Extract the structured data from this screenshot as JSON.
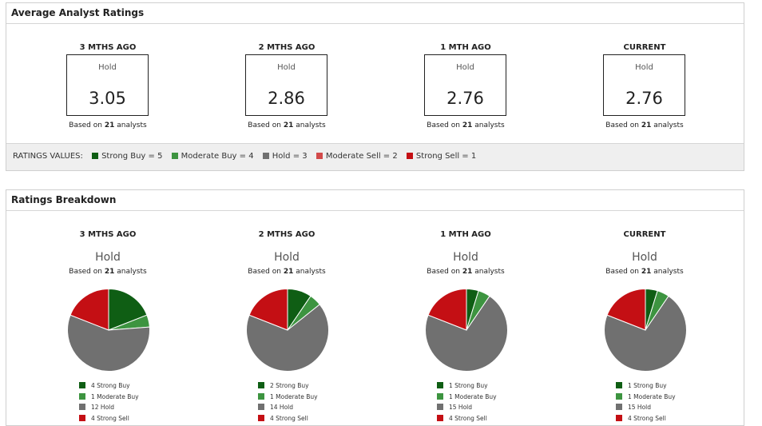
{
  "colors": {
    "strong_buy": "#0f5e14",
    "moderate_buy": "#3d9440",
    "hold": "#707070",
    "moderate_sell": "#d24a4a",
    "strong_sell": "#c40f14"
  },
  "avg_panel": {
    "title": "Average Analyst Ratings",
    "columns": [
      {
        "period": "3 MTHS AGO",
        "rating": "Hold",
        "score": "3.05",
        "based_prefix": "Based on",
        "analysts": "21",
        "based_suffix": "analysts"
      },
      {
        "period": "2 MTHS AGO",
        "rating": "Hold",
        "score": "2.86",
        "based_prefix": "Based on",
        "analysts": "21",
        "based_suffix": "analysts"
      },
      {
        "period": "1 MTH AGO",
        "rating": "Hold",
        "score": "2.76",
        "based_prefix": "Based on",
        "analysts": "21",
        "based_suffix": "analysts"
      },
      {
        "period": "CURRENT",
        "rating": "Hold",
        "score": "2.76",
        "based_prefix": "Based on",
        "analysts": "21",
        "based_suffix": "analysts"
      }
    ],
    "values_label": "RATINGS VALUES:",
    "values": [
      {
        "label": "Strong Buy = 5",
        "key": "strong_buy"
      },
      {
        "label": "Moderate Buy = 4",
        "key": "moderate_buy"
      },
      {
        "label": "Hold = 3",
        "key": "hold"
      },
      {
        "label": "Moderate Sell = 2",
        "key": "moderate_sell"
      },
      {
        "label": "Strong Sell = 1",
        "key": "strong_sell"
      }
    ]
  },
  "breakdown_panel": {
    "title": "Ratings Breakdown",
    "columns": [
      {
        "period": "3 MTHS AGO",
        "rating": "Hold",
        "based_prefix": "Based on",
        "analysts": "21",
        "based_suffix": "analysts",
        "legend": [
          "4 Strong Buy",
          "1 Moderate Buy",
          "12 Hold",
          "4 Strong Sell"
        ]
      },
      {
        "period": "2 MTHS AGO",
        "rating": "Hold",
        "based_prefix": "Based on",
        "analysts": "21",
        "based_suffix": "analysts",
        "legend": [
          "2 Strong Buy",
          "1 Moderate Buy",
          "14 Hold",
          "4 Strong Sell"
        ]
      },
      {
        "period": "1 MTH AGO",
        "rating": "Hold",
        "based_prefix": "Based on",
        "analysts": "21",
        "based_suffix": "analysts",
        "legend": [
          "1 Strong Buy",
          "1 Moderate Buy",
          "15 Hold",
          "4 Strong Sell"
        ]
      },
      {
        "period": "CURRENT",
        "rating": "Hold",
        "based_prefix": "Based on",
        "analysts": "21",
        "based_suffix": "analysts",
        "legend": [
          "1 Strong Buy",
          "1 Moderate Buy",
          "15 Hold",
          "4 Strong Sell"
        ]
      }
    ]
  },
  "chart_data": [
    {
      "type": "pie",
      "categories": [
        "Strong Buy",
        "Moderate Buy",
        "Hold",
        "Strong Sell"
      ],
      "values": [
        4,
        1,
        12,
        4
      ]
    },
    {
      "type": "pie",
      "categories": [
        "Strong Buy",
        "Moderate Buy",
        "Hold",
        "Strong Sell"
      ],
      "values": [
        2,
        1,
        14,
        4
      ]
    },
    {
      "type": "pie",
      "categories": [
        "Strong Buy",
        "Moderate Buy",
        "Hold",
        "Strong Sell"
      ],
      "values": [
        1,
        1,
        15,
        4
      ]
    },
    {
      "type": "pie",
      "categories": [
        "Strong Buy",
        "Moderate Buy",
        "Hold",
        "Strong Sell"
      ],
      "values": [
        1,
        1,
        15,
        4
      ]
    }
  ]
}
